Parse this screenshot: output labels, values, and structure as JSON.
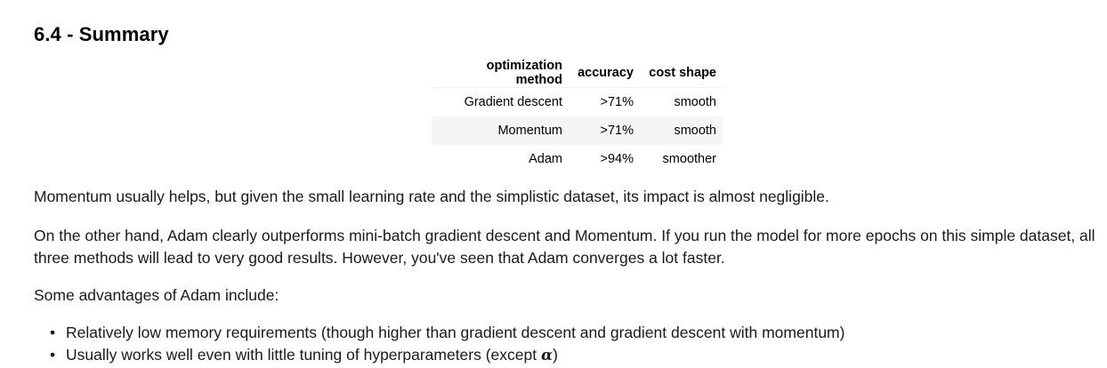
{
  "heading": "6.4 - Summary",
  "table": {
    "headers": [
      "optimization method",
      "accuracy",
      "cost shape"
    ],
    "rows": [
      [
        "Gradient descent",
        ">71%",
        "smooth"
      ],
      [
        "Momentum",
        ">71%",
        "smooth"
      ],
      [
        "Adam",
        ">94%",
        "smoother"
      ]
    ]
  },
  "paragraphs": {
    "p1": "Momentum usually helps, but given the small learning rate and the simplistic dataset, its impact is almost negligible.",
    "p2_line1": "On the other hand, Adam clearly outperforms mini-batch gradient descent and Momentum. If you run the model for more epochs on this simple dataset, all",
    "p2_line2": "three methods will lead to very good results. However, you've seen that Adam converges a lot faster.",
    "p3": "Some advantages of Adam include:"
  },
  "advantages": {
    "bullet": "•",
    "item1": "Relatively low memory requirements (though higher than gradient descent and gradient descent with momentum)",
    "item2_prefix": "Usually works well even with little tuning of hyperparameters (except ",
    "item2_symbol": "α",
    "item2_suffix": ")"
  }
}
